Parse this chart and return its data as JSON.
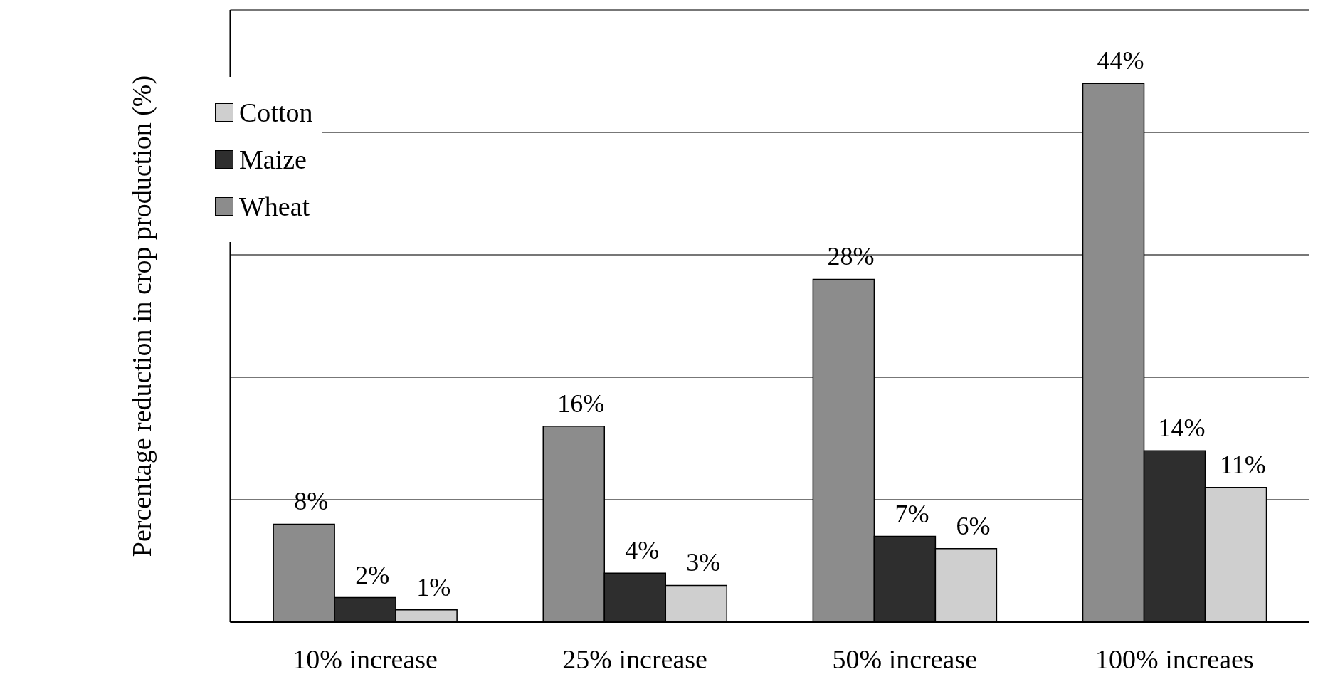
{
  "chart_data": {
    "type": "bar",
    "ylabel": "Percentage reduction in crop production (%)",
    "categories": [
      "10% increase",
      "25% increase",
      "50% increase",
      "100% increaes"
    ],
    "series": [
      {
        "name": "Wheat",
        "color": "#8c8c8c",
        "values": [
          8,
          16,
          28,
          44
        ],
        "value_labels": [
          "8%",
          "16%",
          "28%",
          "44%"
        ]
      },
      {
        "name": "Maize",
        "color": "#2e2e2e",
        "values": [
          2,
          4,
          7,
          14
        ],
        "value_labels": [
          "2%",
          "4%",
          "7%",
          "14%"
        ]
      },
      {
        "name": "Cotton",
        "color": "#cfcfcf",
        "values": [
          1,
          3,
          6,
          11
        ],
        "value_labels": [
          "1%",
          "3%",
          "6%",
          "11%"
        ]
      }
    ],
    "ylim": [
      0,
      50
    ],
    "yticks": [
      {
        "value": 0,
        "label": null
      },
      {
        "value": 10,
        "label": null
      },
      {
        "value": 20,
        "label": null
      },
      {
        "value": 30,
        "label": null
      },
      {
        "value": 40,
        "label": null
      },
      {
        "value": 50,
        "label": null
      }
    ],
    "tick_labels": "x",
    "grid": "y",
    "legend": "top left"
  }
}
